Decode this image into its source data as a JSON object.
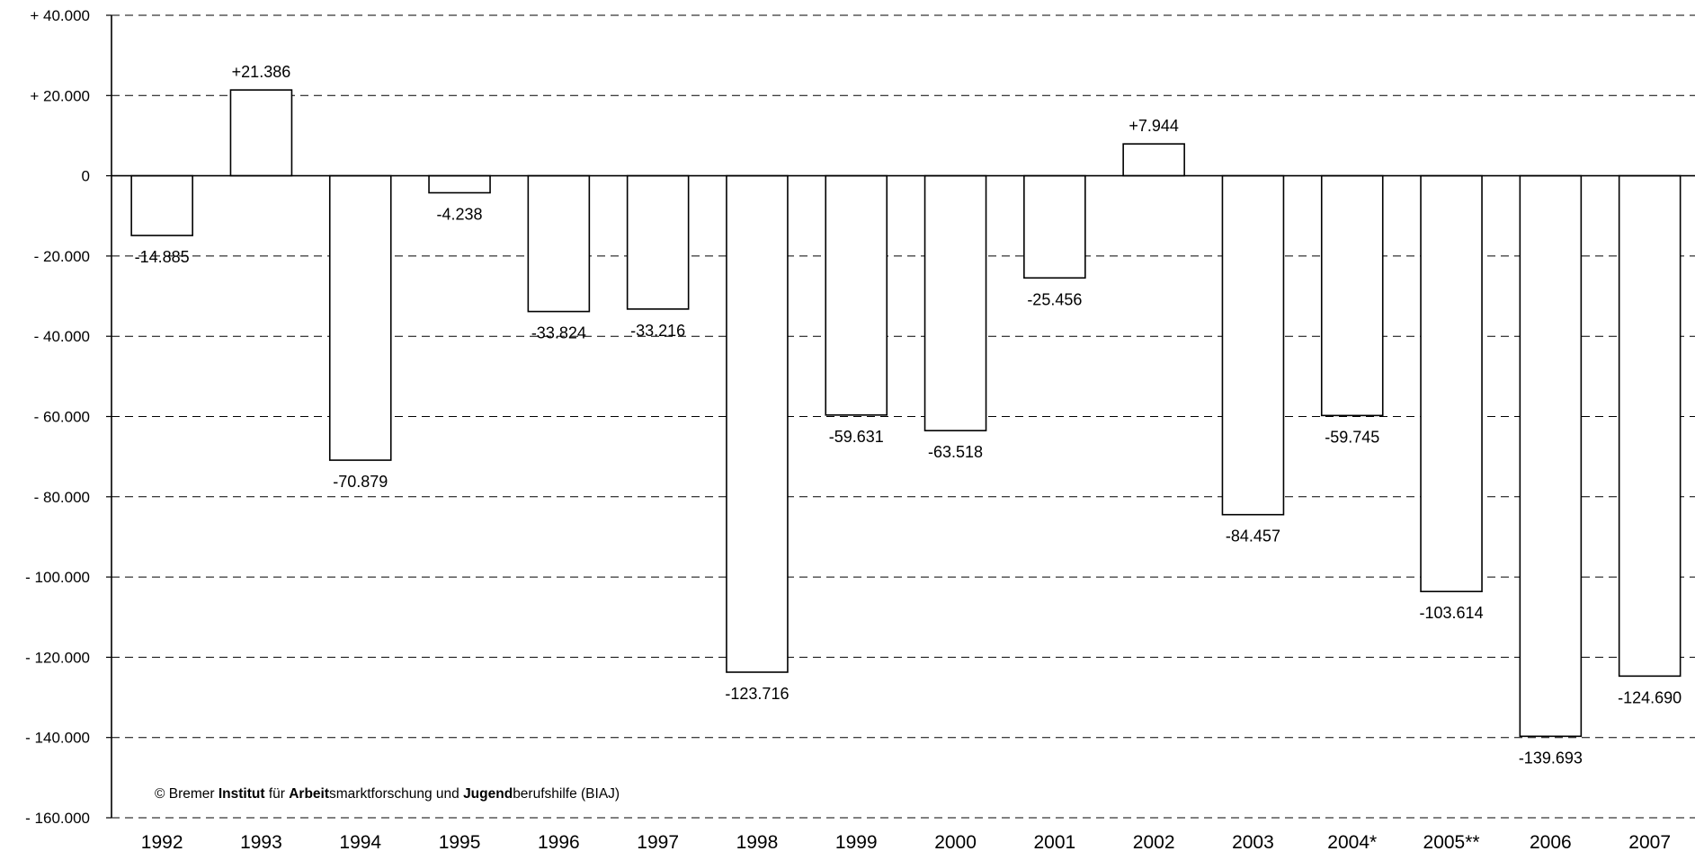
{
  "chart_data": {
    "type": "bar",
    "categories": [
      "1992",
      "1993",
      "1994",
      "1995",
      "1996",
      "1997",
      "1998",
      "1999",
      "2000",
      "2001",
      "2002",
      "2003",
      "2004*",
      "2005**",
      "2006",
      "2007"
    ],
    "values": [
      -14885,
      21386,
      -70879,
      -4238,
      -33824,
      -33216,
      -123716,
      -59631,
      -63518,
      -25456,
      7944,
      -84457,
      -59745,
      -103614,
      -139693,
      -124690
    ],
    "data_labels": [
      "-14.885",
      "+21.386",
      "-70.879",
      "-4.238",
      "-33.824",
      "-33.216",
      "-123.716",
      "-59.631",
      "-63.518",
      "-25.456",
      "+7.944",
      "-84.457",
      "-59.745",
      "-103.614",
      "-139.693",
      "-124.690"
    ],
    "y_ticks": [
      {
        "value": 40000,
        "label": "+ 40.000"
      },
      {
        "value": 20000,
        "label": "+ 20.000"
      },
      {
        "value": 0,
        "label": "0"
      },
      {
        "value": -20000,
        "label": "- 20.000"
      },
      {
        "value": -40000,
        "label": "- 40.000"
      },
      {
        "value": -60000,
        "label": "- 60.000"
      },
      {
        "value": -80000,
        "label": "- 80.000"
      },
      {
        "value": -100000,
        "label": "- 100.000"
      },
      {
        "value": -120000,
        "label": "- 120.000"
      },
      {
        "value": -140000,
        "label": "- 140.000"
      },
      {
        "value": -160000,
        "label": "- 160.000"
      }
    ],
    "ylim": [
      -160000,
      40000
    ],
    "grid": true,
    "colors": {
      "bar_fill": "#ffffff",
      "bar_stroke": "#000000"
    }
  },
  "copyright": {
    "symbol": "© Bremer ",
    "w1": "Institut",
    "t1": " für ",
    "w2": "Arbeit",
    "t2": "smarktforschung und ",
    "w3": "Jugend",
    "t3": "berufshilfe (BIAJ)"
  }
}
